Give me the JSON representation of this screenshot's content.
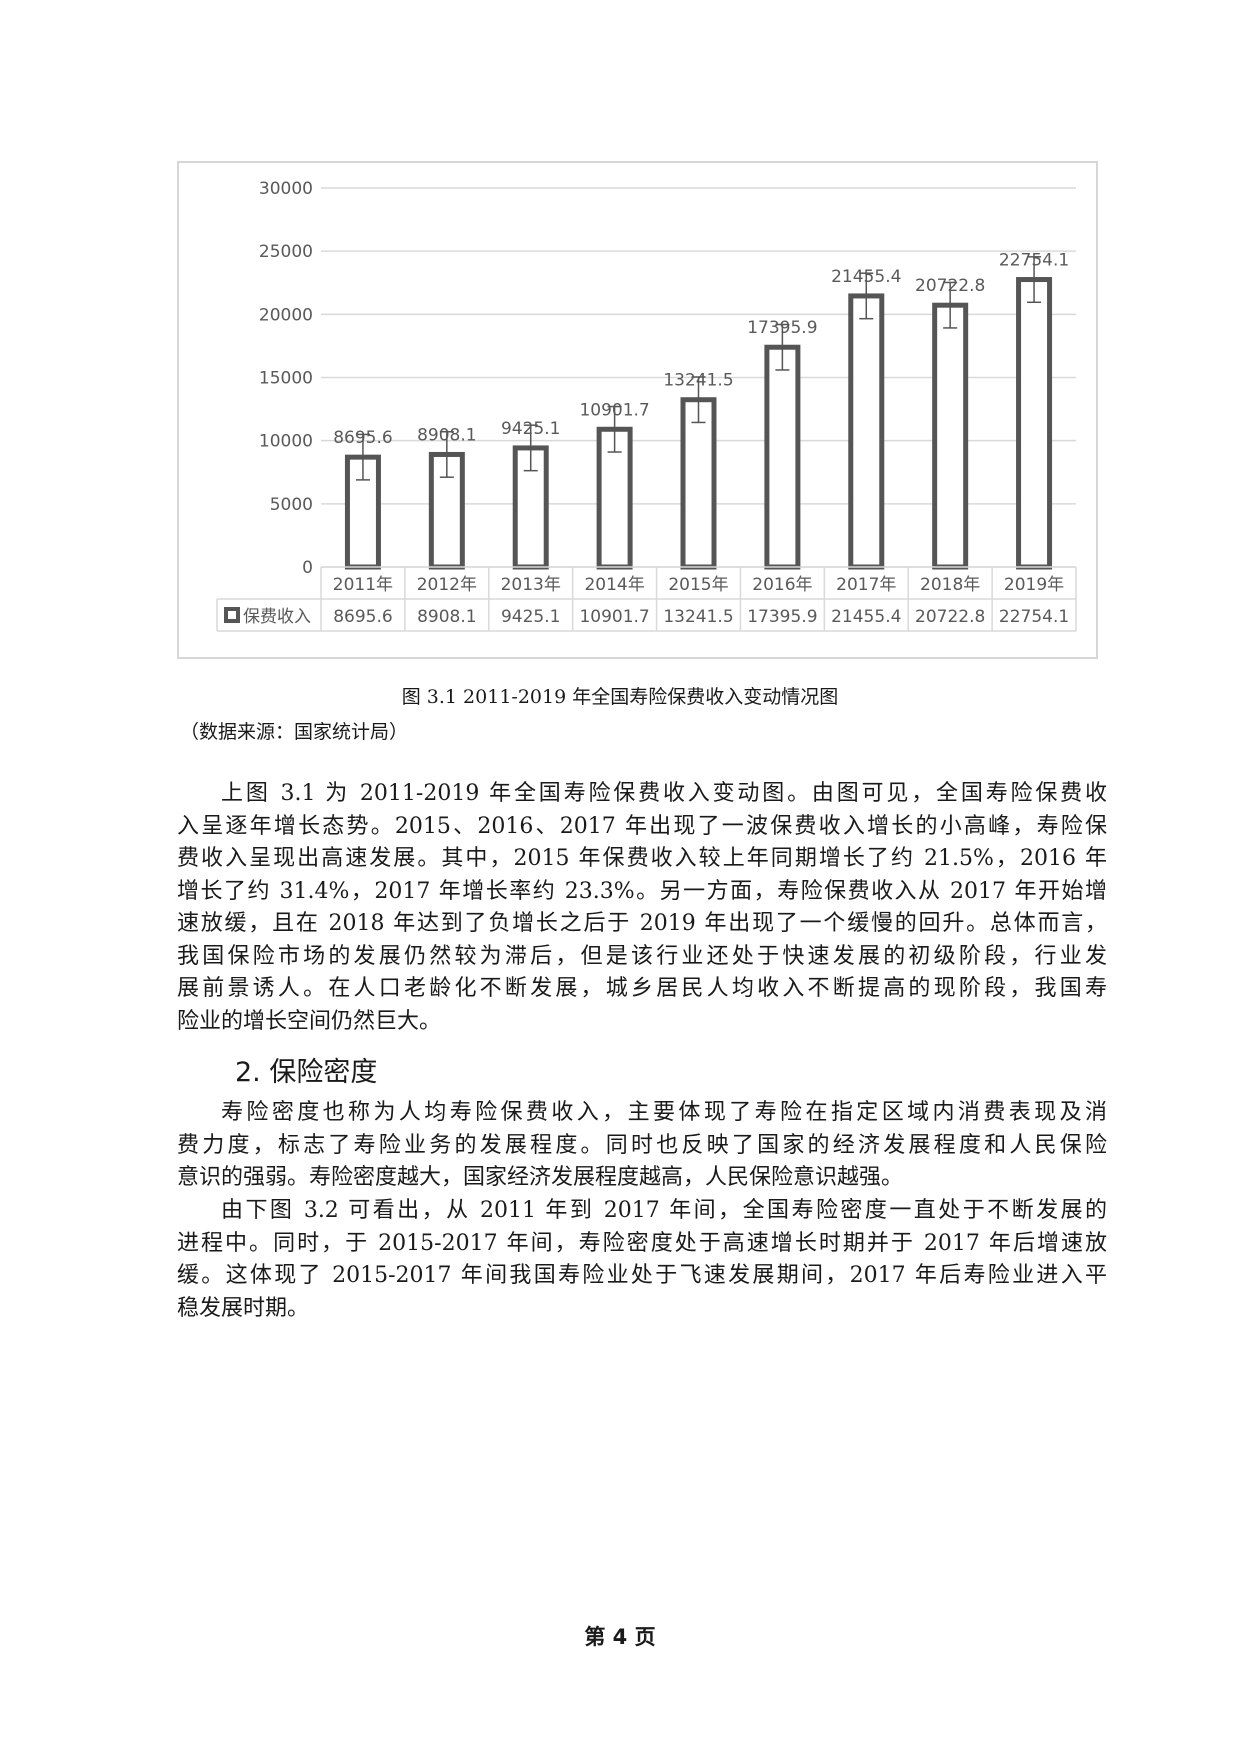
{
  "chart_data": {
    "type": "bar",
    "categories": [
      "2011年",
      "2012年",
      "2013年",
      "2014年",
      "2015年",
      "2016年",
      "2017年",
      "2018年",
      "2019年"
    ],
    "series": [
      {
        "name": "保费收入",
        "values": [
          8695.6,
          8908.1,
          9425.1,
          10901.7,
          13241.5,
          17395.9,
          21455.4,
          20722.8,
          22754.1
        ]
      }
    ],
    "data_labels": [
      "8695.6",
      "8908.1",
      "9425.1",
      "10901.7",
      "13241.5",
      "17395.9",
      "21455.4",
      "20722.8",
      "22754.1"
    ],
    "yticks": [
      "0",
      "5000",
      "10000",
      "15000",
      "20000",
      "25000",
      "30000"
    ],
    "ylim": [
      0,
      30000
    ],
    "error_bar": 1800,
    "grid": true,
    "legend": "data-table",
    "colors": {
      "bar_stroke": "#555555",
      "grid": "#d9d9d9",
      "text": "#595959",
      "table_border": "#d9d9d9"
    }
  },
  "figure": {
    "caption": "图 3.1 2011-2019 年全国寿险保费收入变动情况图",
    "source": "（数据来源：国家统计局）"
  },
  "para1": [
    "上图 3.1 为 2011-2019 年全国寿险保费收入变动图。由图可见，全国寿险保费收",
    "入呈逐年增长态势。2015、2016、2017 年出现了一波保费收入增长的小高峰，寿险保",
    "费收入呈现出高速发展。其中，2015 年保费收入较上年同期增长了约 21.5%，2016 年",
    "增长了约 31.4%，2017 年增长率约 23.3%。另一方面，寿险保费收入从 2017 年开始增",
    "速放缓，且在 2018 年达到了负增长之后于 2019 年出现了一个缓慢的回升。总体而言，",
    "我国保险市场的发展仍然较为滞后，但是该行业还处于快速发展的初级阶段，行业发",
    "展前景诱人。在人口老龄化不断发展，城乡居民人均收入不断提高的现阶段，我国寿",
    "险业的增长空间仍然巨大。"
  ],
  "heading": "2. 保险密度",
  "para2": [
    "寿险密度也称为人均寿险保费收入，主要体现了寿险在指定区域内消费表现及消",
    "费力度，标志了寿险业务的发展程度。同时也反映了国家的经济发展程度和人民保险",
    "意识的强弱。寿险密度越大，国家经济发展程度越高，人民保险意识越强。"
  ],
  "para3": [
    "由下图 3.2 可看出，从 2011 年到 2017 年间，全国寿险密度一直处于不断发展的",
    "进程中。同时，于 2015-2017 年间，寿险密度处于高速增长时期并于 2017 年后增速放",
    "缓。这体现了 2015-2017 年间我国寿险业处于飞速发展期间，2017 年后寿险业进入平",
    "稳发展时期。"
  ],
  "footer": "第 4 页"
}
